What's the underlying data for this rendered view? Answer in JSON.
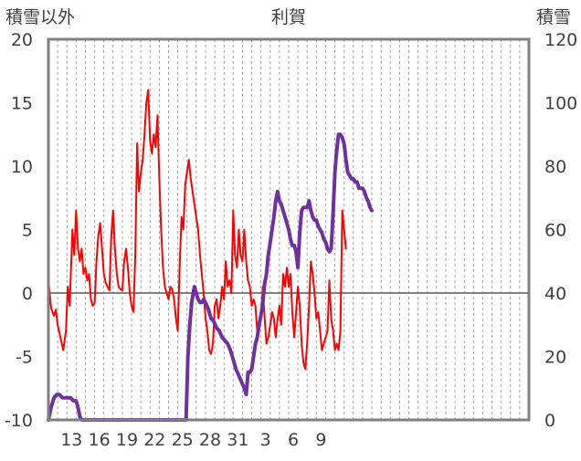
{
  "chart_data": {
    "type": "line",
    "title": "利賀",
    "y_left_label": "積雪以外",
    "y_right_label": "積雪",
    "ylim_left": [
      -10,
      20
    ],
    "ylim_right": [
      0,
      120
    ],
    "y_left_ticks": [
      "20",
      "15",
      "10",
      "5",
      "0",
      "-5",
      "-10"
    ],
    "y_right_ticks": [
      "120",
      "100",
      "80",
      "60",
      "40",
      "20",
      "0"
    ],
    "x_range": [
      0,
      52
    ],
    "x_ticks": [
      {
        "x": 2.5,
        "label": "13"
      },
      {
        "x": 5.5,
        "label": "16"
      },
      {
        "x": 8.5,
        "label": "19"
      },
      {
        "x": 11.5,
        "label": "22"
      },
      {
        "x": 14.5,
        "label": "25"
      },
      {
        "x": 17.5,
        "label": "28"
      },
      {
        "x": 20.5,
        "label": "31"
      },
      {
        "x": 23.5,
        "label": "3"
      },
      {
        "x": 26.5,
        "label": "6"
      },
      {
        "x": 29.5,
        "label": "9"
      }
    ],
    "grid": "vertical dashed, one per day",
    "series": [
      {
        "color": "#ff0000",
        "axis": "left",
        "points": [
          [
            0.0,
            1.0
          ],
          [
            0.3,
            -1.2
          ],
          [
            0.6,
            -1.8
          ],
          [
            0.8,
            -1.3
          ],
          [
            1.0,
            -2.5
          ],
          [
            1.3,
            -3.5
          ],
          [
            1.6,
            -4.5
          ],
          [
            1.9,
            -3.0
          ],
          [
            2.1,
            0.5
          ],
          [
            2.3,
            -1.0
          ],
          [
            2.6,
            5.0
          ],
          [
            2.8,
            3.0
          ],
          [
            3.0,
            6.5
          ],
          [
            3.2,
            3.5
          ],
          [
            3.4,
            2.5
          ],
          [
            3.6,
            3.5
          ],
          [
            3.8,
            1.5
          ],
          [
            4.0,
            2.0
          ],
          [
            4.2,
            1.0
          ],
          [
            4.4,
            1.5
          ],
          [
            4.6,
            -0.5
          ],
          [
            4.8,
            -1.0
          ],
          [
            5.0,
            -0.8
          ],
          [
            5.2,
            2.5
          ],
          [
            5.4,
            4.5
          ],
          [
            5.6,
            5.5
          ],
          [
            5.8,
            3.5
          ],
          [
            6.0,
            1.5
          ],
          [
            6.2,
            0.8
          ],
          [
            6.4,
            0.5
          ],
          [
            6.6,
            0.2
          ],
          [
            6.8,
            4.5
          ],
          [
            7.0,
            6.5
          ],
          [
            7.2,
            3.5
          ],
          [
            7.4,
            1.5
          ],
          [
            7.6,
            0.5
          ],
          [
            7.8,
            0.3
          ],
          [
            8.0,
            0.2
          ],
          [
            8.2,
            2.5
          ],
          [
            8.4,
            3.5
          ],
          [
            8.6,
            2.0
          ],
          [
            8.8,
            0.0
          ],
          [
            9.0,
            -1.0
          ],
          [
            9.2,
            -1.5
          ],
          [
            9.4,
            3.0
          ],
          [
            9.6,
            11.8
          ],
          [
            9.8,
            8.0
          ],
          [
            10.0,
            9.5
          ],
          [
            10.2,
            10.5
          ],
          [
            10.4,
            12.5
          ],
          [
            10.6,
            15.0
          ],
          [
            10.8,
            16.0
          ],
          [
            11.0,
            12.0
          ],
          [
            11.2,
            11.0
          ],
          [
            11.4,
            12.5
          ],
          [
            11.6,
            11.5
          ],
          [
            11.8,
            14.0
          ],
          [
            12.0,
            9.0
          ],
          [
            12.2,
            5.0
          ],
          [
            12.4,
            2.0
          ],
          [
            12.6,
            0.5
          ],
          [
            12.8,
            0.0
          ],
          [
            13.0,
            -0.5
          ],
          [
            13.2,
            0.5
          ],
          [
            13.4,
            0.3
          ],
          [
            13.6,
            -0.5
          ],
          [
            13.8,
            -2.0
          ],
          [
            14.0,
            -3.0
          ],
          [
            14.2,
            2.0
          ],
          [
            14.4,
            6.0
          ],
          [
            14.6,
            5.0
          ],
          [
            14.8,
            8.5
          ],
          [
            15.0,
            9.5
          ],
          [
            15.2,
            10.5
          ],
          [
            15.4,
            9.0
          ],
          [
            15.6,
            8.0
          ],
          [
            15.8,
            7.0
          ],
          [
            16.0,
            6.0
          ],
          [
            16.2,
            5.0
          ],
          [
            16.4,
            3.0
          ],
          [
            16.6,
            1.5
          ],
          [
            16.8,
            0.0
          ],
          [
            17.0,
            -2.0
          ],
          [
            17.2,
            -3.0
          ],
          [
            17.4,
            -4.5
          ],
          [
            17.6,
            -4.8
          ],
          [
            17.8,
            -4.0
          ],
          [
            18.0,
            -1.0
          ],
          [
            18.2,
            -0.5
          ],
          [
            18.4,
            -2.0
          ],
          [
            18.6,
            -1.0
          ],
          [
            18.8,
            0.5
          ],
          [
            19.0,
            -0.5
          ],
          [
            19.2,
            2.5
          ],
          [
            19.4,
            0.5
          ],
          [
            19.6,
            1.0
          ],
          [
            19.8,
            0.0
          ],
          [
            20.0,
            6.5
          ],
          [
            20.2,
            3.0
          ],
          [
            20.4,
            2.0
          ],
          [
            20.6,
            5.0
          ],
          [
            20.8,
            3.0
          ],
          [
            21.0,
            2.5
          ],
          [
            21.2,
            5.0
          ],
          [
            21.4,
            2.5
          ],
          [
            21.6,
            1.0
          ],
          [
            21.8,
            0.5
          ],
          [
            22.0,
            -1.0
          ],
          [
            22.2,
            -0.5
          ],
          [
            22.4,
            -1.0
          ],
          [
            22.6,
            -3.0
          ],
          [
            22.8,
            -2.5
          ],
          [
            23.0,
            -2.0
          ],
          [
            23.2,
            0.5
          ],
          [
            23.4,
            -2.0
          ],
          [
            23.6,
            -4.0
          ],
          [
            23.8,
            -3.5
          ],
          [
            24.0,
            -2.5
          ],
          [
            24.2,
            -1.5
          ],
          [
            24.4,
            -2.0
          ],
          [
            24.6,
            -3.5
          ],
          [
            24.8,
            -2.0
          ],
          [
            25.0,
            -1.0
          ],
          [
            25.2,
            -2.5
          ],
          [
            25.4,
            1.5
          ],
          [
            25.6,
            0.5
          ],
          [
            25.8,
            2.0
          ],
          [
            26.0,
            0.5
          ],
          [
            26.2,
            1.5
          ],
          [
            26.4,
            -1.5
          ],
          [
            26.6,
            -3.5
          ],
          [
            26.8,
            -1.5
          ],
          [
            27.0,
            0.5
          ],
          [
            27.2,
            -1.0
          ],
          [
            27.4,
            -4.0
          ],
          [
            27.6,
            -5.5
          ],
          [
            27.8,
            -6.0
          ],
          [
            28.0,
            -4.0
          ],
          [
            28.2,
            -1.0
          ],
          [
            28.4,
            2.5
          ],
          [
            28.6,
            1.5
          ],
          [
            28.8,
            0.0
          ],
          [
            29.0,
            -2.0
          ],
          [
            29.2,
            -1.5
          ],
          [
            29.4,
            -3.0
          ],
          [
            29.6,
            -4.5
          ],
          [
            29.8,
            -4.0
          ],
          [
            30.0,
            -3.5
          ],
          [
            30.2,
            -3.0
          ],
          [
            30.4,
            1.0
          ],
          [
            30.6,
            -2.0
          ],
          [
            30.8,
            -3.0
          ],
          [
            31.0,
            -4.5
          ],
          [
            31.2,
            -4.0
          ],
          [
            31.4,
            -4.5
          ],
          [
            31.6,
            -3.0
          ],
          [
            31.8,
            6.5
          ],
          [
            32.0,
            5.0
          ],
          [
            32.2,
            3.5
          ]
        ]
      },
      {
        "color": "#7030a0",
        "axis": "right",
        "points": [
          [
            0.0,
            0
          ],
          [
            0.3,
            4
          ],
          [
            0.6,
            7
          ],
          [
            0.9,
            8
          ],
          [
            1.2,
            8
          ],
          [
            1.5,
            7
          ],
          [
            1.8,
            7
          ],
          [
            2.1,
            7
          ],
          [
            2.4,
            7
          ],
          [
            2.7,
            6
          ],
          [
            3.0,
            6
          ],
          [
            3.2,
            4
          ],
          [
            3.4,
            1
          ],
          [
            3.6,
            0
          ],
          [
            14.5,
            0
          ],
          [
            14.9,
            0
          ],
          [
            15.1,
            20
          ],
          [
            15.3,
            30
          ],
          [
            15.5,
            37
          ],
          [
            15.8,
            42
          ],
          [
            16.0,
            40
          ],
          [
            16.2,
            38
          ],
          [
            16.4,
            37
          ],
          [
            16.6,
            37
          ],
          [
            16.8,
            38
          ],
          [
            17.0,
            37
          ],
          [
            17.3,
            35
          ],
          [
            17.6,
            32
          ],
          [
            17.9,
            31
          ],
          [
            18.2,
            29
          ],
          [
            18.5,
            28
          ],
          [
            18.8,
            26
          ],
          [
            19.1,
            25
          ],
          [
            19.4,
            24
          ],
          [
            19.7,
            22
          ],
          [
            20.0,
            19
          ],
          [
            20.3,
            16
          ],
          [
            20.6,
            14
          ],
          [
            20.9,
            12
          ],
          [
            21.2,
            10
          ],
          [
            21.4,
            8
          ],
          [
            21.6,
            15
          ],
          [
            21.8,
            15
          ],
          [
            22.0,
            16
          ],
          [
            22.2,
            20
          ],
          [
            22.4,
            24
          ],
          [
            22.6,
            26
          ],
          [
            22.8,
            30
          ],
          [
            23.0,
            33
          ],
          [
            23.2,
            37
          ],
          [
            23.4,
            43
          ],
          [
            23.6,
            46
          ],
          [
            23.8,
            52
          ],
          [
            24.0,
            56
          ],
          [
            24.2,
            60
          ],
          [
            24.4,
            64
          ],
          [
            24.6,
            69
          ],
          [
            24.8,
            72
          ],
          [
            25.0,
            69
          ],
          [
            25.2,
            68
          ],
          [
            25.4,
            66
          ],
          [
            25.6,
            64
          ],
          [
            25.8,
            62
          ],
          [
            26.0,
            60
          ],
          [
            26.2,
            57
          ],
          [
            26.4,
            55
          ],
          [
            26.6,
            55
          ],
          [
            26.8,
            53
          ],
          [
            27.0,
            48
          ],
          [
            27.2,
            59
          ],
          [
            27.4,
            66
          ],
          [
            27.6,
            67
          ],
          [
            27.8,
            67
          ],
          [
            28.0,
            67
          ],
          [
            28.2,
            69
          ],
          [
            28.4,
            66
          ],
          [
            28.6,
            64
          ],
          [
            28.8,
            63
          ],
          [
            29.0,
            63
          ],
          [
            29.2,
            61
          ],
          [
            29.4,
            60
          ],
          [
            29.6,
            59
          ],
          [
            29.8,
            57
          ],
          [
            30.0,
            56
          ],
          [
            30.2,
            54
          ],
          [
            30.4,
            53
          ],
          [
            30.6,
            54
          ],
          [
            30.8,
            65
          ],
          [
            31.0,
            78
          ],
          [
            31.2,
            85
          ],
          [
            31.4,
            90
          ],
          [
            31.6,
            90
          ],
          [
            31.8,
            89
          ],
          [
            32.0,
            87
          ],
          [
            32.2,
            82
          ],
          [
            32.4,
            78
          ],
          [
            32.6,
            77
          ],
          [
            32.8,
            76
          ],
          [
            33.0,
            76
          ],
          [
            33.2,
            75
          ],
          [
            33.4,
            75
          ],
          [
            33.6,
            73
          ],
          [
            33.8,
            73
          ],
          [
            34.0,
            73
          ],
          [
            34.2,
            72
          ],
          [
            34.4,
            70
          ],
          [
            34.6,
            69
          ],
          [
            34.8,
            67
          ],
          [
            35.0,
            66
          ]
        ]
      }
    ]
  }
}
